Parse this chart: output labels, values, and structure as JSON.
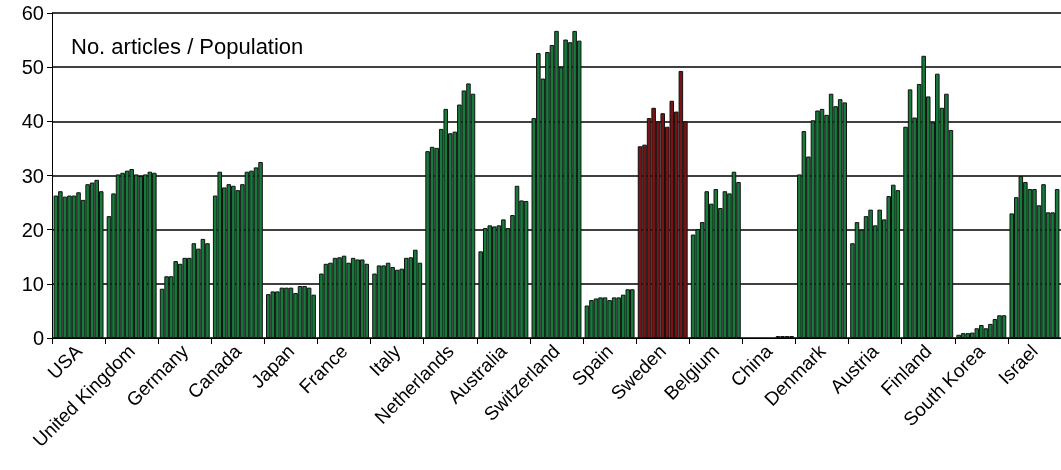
{
  "chart_data": {
    "type": "bar",
    "title": "No. articles / Population",
    "categories": [
      "USA",
      "United Kingdom",
      "Germany",
      "Canada",
      "Japan",
      "France",
      "Italy",
      "Netherlands",
      "Australia",
      "Switzerland",
      "Spain",
      "Sweden",
      "Belgium",
      "China",
      "Denmark",
      "Austria",
      "Finland",
      "South Korea",
      "Israel"
    ],
    "ylim": [
      0,
      60
    ],
    "yticks": [
      0,
      10,
      20,
      30,
      40,
      50,
      60
    ],
    "grid": "y",
    "series": [
      {
        "values": [
          26.3,
          22.5,
          9.1,
          26.3,
          8.1,
          11.9,
          11.9,
          34.5,
          16.0,
          40.6,
          6.0,
          35.4,
          19.1,
          null,
          30.2,
          17.5,
          39.0,
          0.6,
          23.0
        ],
        "colors": [
          "#157a3a",
          "#157a3a",
          "#157a3a",
          "#157a3a",
          "#157a3a",
          "#157a3a",
          "#157a3a",
          "#157a3a",
          "#157a3a",
          "#157a3a",
          "#157a3a",
          "#7a1414",
          "#157a3a",
          "#157a3a",
          "#157a3a",
          "#157a3a",
          "#157a3a",
          "#157a3a",
          "#157a3a"
        ]
      },
      {
        "values": [
          27.1,
          26.7,
          11.4,
          30.7,
          8.6,
          13.7,
          13.4,
          35.3,
          20.3,
          52.6,
          7.0,
          35.7,
          20.1,
          null,
          38.2,
          21.4,
          45.9,
          0.9,
          26.0
        ],
        "colors": [
          "#157a3a",
          "#157a3a",
          "#157a3a",
          "#157a3a",
          "#157a3a",
          "#157a3a",
          "#157a3a",
          "#157a3a",
          "#157a3a",
          "#157a3a",
          "#157a3a",
          "#7a1414",
          "#157a3a",
          "#157a3a",
          "#157a3a",
          "#157a3a",
          "#157a3a",
          "#157a3a",
          "#157a3a"
        ]
      },
      {
        "values": [
          26.1,
          30.2,
          11.4,
          27.8,
          8.6,
          13.9,
          13.4,
          35.1,
          20.8,
          47.9,
          7.3,
          40.6,
          21.4,
          null,
          33.5,
          20.0,
          40.7,
          0.9,
          29.9
        ],
        "colors": [
          "#157a3a",
          "#157a3a",
          "#157a3a",
          "#157a3a",
          "#157a3a",
          "#157a3a",
          "#157a3a",
          "#157a3a",
          "#157a3a",
          "#157a3a",
          "#157a3a",
          "#7a1414",
          "#157a3a",
          "#157a3a",
          "#157a3a",
          "#157a3a",
          "#157a3a",
          "#157a3a",
          "#157a3a"
        ]
      },
      {
        "values": [
          26.3,
          30.5,
          14.2,
          28.4,
          9.3,
          14.8,
          13.9,
          38.6,
          20.6,
          52.8,
          7.5,
          42.5,
          27.1,
          null,
          40.2,
          22.5,
          46.9,
          1.0,
          28.8
        ],
        "colors": [
          "#157a3a",
          "#157a3a",
          "#157a3a",
          "#157a3a",
          "#157a3a",
          "#157a3a",
          "#157a3a",
          "#157a3a",
          "#157a3a",
          "#157a3a",
          "#157a3a",
          "#7a1414",
          "#157a3a",
          "#157a3a",
          "#157a3a",
          "#157a3a",
          "#157a3a",
          "#157a3a",
          "#157a3a"
        ]
      },
      {
        "values": [
          26.3,
          30.9,
          13.7,
          28.1,
          9.3,
          14.9,
          13.1,
          42.3,
          20.8,
          54.1,
          7.5,
          40.0,
          24.8,
          null,
          42.0,
          23.7,
          52.1,
          1.8,
          27.5
        ],
        "colors": [
          "#157a3a",
          "#157a3a",
          "#157a3a",
          "#157a3a",
          "#157a3a",
          "#157a3a",
          "#157a3a",
          "#157a3a",
          "#157a3a",
          "#157a3a",
          "#157a3a",
          "#7a1414",
          "#157a3a",
          "#157a3a",
          "#157a3a",
          "#157a3a",
          "#157a3a",
          "#157a3a",
          "#157a3a"
        ]
      },
      {
        "values": [
          26.9,
          31.2,
          14.8,
          27.3,
          9.3,
          15.2,
          12.6,
          37.8,
          21.9,
          56.7,
          7.0,
          41.5,
          27.5,
          null,
          42.3,
          20.8,
          44.6,
          2.4,
          27.5
        ],
        "colors": [
          "#157a3a",
          "#157a3a",
          "#157a3a",
          "#157a3a",
          "#157a3a",
          "#157a3a",
          "#157a3a",
          "#157a3a",
          "#157a3a",
          "#157a3a",
          "#157a3a",
          "#7a1414",
          "#157a3a",
          "#157a3a",
          "#157a3a",
          "#157a3a",
          "#157a3a",
          "#157a3a",
          "#157a3a"
        ]
      },
      {
        "values": [
          25.5,
          30.2,
          14.8,
          28.4,
          8.3,
          13.9,
          12.8,
          38.1,
          20.3,
          50.0,
          7.5,
          39.0,
          24.0,
          null,
          41.2,
          23.7,
          39.8,
          1.8,
          24.5
        ],
        "colors": [
          "#157a3a",
          "#157a3a",
          "#157a3a",
          "#157a3a",
          "#157a3a",
          "#157a3a",
          "#157a3a",
          "#157a3a",
          "#157a3a",
          "#157a3a",
          "#157a3a",
          "#7a1414",
          "#157a3a",
          "#157a3a",
          "#157a3a",
          "#157a3a",
          "#157a3a",
          "#157a3a",
          "#157a3a"
        ]
      },
      {
        "values": [
          28.4,
          29.9,
          17.5,
          30.7,
          9.6,
          14.8,
          14.8,
          43.1,
          22.7,
          55.1,
          7.5,
          43.8,
          27.1,
          0.3,
          45.1,
          21.9,
          48.8,
          2.6,
          28.4
        ],
        "colors": [
          "#157a3a",
          "#157a3a",
          "#157a3a",
          "#157a3a",
          "#157a3a",
          "#157a3a",
          "#157a3a",
          "#157a3a",
          "#157a3a",
          "#157a3a",
          "#157a3a",
          "#7a1414",
          "#157a3a",
          "#157a3a",
          "#157a3a",
          "#157a3a",
          "#157a3a",
          "#157a3a",
          "#157a3a"
        ]
      },
      {
        "values": [
          28.7,
          30.2,
          16.5,
          30.9,
          9.6,
          14.5,
          14.9,
          45.7,
          28.1,
          54.6,
          8.0,
          41.8,
          26.7,
          0.3,
          42.8,
          26.2,
          42.5,
          3.5,
          23.2
        ],
        "colors": [
          "#157a3a",
          "#157a3a",
          "#157a3a",
          "#157a3a",
          "#157a3a",
          "#157a3a",
          "#157a3a",
          "#157a3a",
          "#157a3a",
          "#157a3a",
          "#157a3a",
          "#7a1414",
          "#157a3a",
          "#157a3a",
          "#157a3a",
          "#157a3a",
          "#157a3a",
          "#157a3a",
          "#157a3a"
        ]
      },
      {
        "values": [
          29.2,
          30.7,
          18.3,
          31.5,
          9.3,
          14.5,
          16.3,
          47.0,
          25.4,
          56.7,
          9.0,
          49.3,
          30.7,
          0.3,
          44.1,
          28.3,
          45.1,
          4.2,
          23.2
        ],
        "colors": [
          "#157a3a",
          "#157a3a",
          "#157a3a",
          "#157a3a",
          "#157a3a",
          "#157a3a",
          "#157a3a",
          "#157a3a",
          "#157a3a",
          "#157a3a",
          "#157a3a",
          "#7a1414",
          "#157a3a",
          "#157a3a",
          "#157a3a",
          "#157a3a",
          "#157a3a",
          "#157a3a",
          "#157a3a"
        ]
      },
      {
        "values": [
          27.1,
          30.5,
          17.5,
          32.5,
          8.0,
          13.7,
          13.9,
          45.1,
          25.3,
          54.9,
          9.0,
          40.0,
          28.8,
          0.3,
          43.5,
          27.3,
          38.4,
          4.2,
          27.5
        ],
        "colors": [
          "#157a3a",
          "#157a3a",
          "#157a3a",
          "#157a3a",
          "#157a3a",
          "#157a3a",
          "#157a3a",
          "#157a3a",
          "#157a3a",
          "#157a3a",
          "#157a3a",
          "#7a1414",
          "#157a3a",
          "#157a3a",
          "#157a3a",
          "#157a3a",
          "#157a3a",
          "#157a3a",
          "#157a3a"
        ]
      }
    ]
  }
}
